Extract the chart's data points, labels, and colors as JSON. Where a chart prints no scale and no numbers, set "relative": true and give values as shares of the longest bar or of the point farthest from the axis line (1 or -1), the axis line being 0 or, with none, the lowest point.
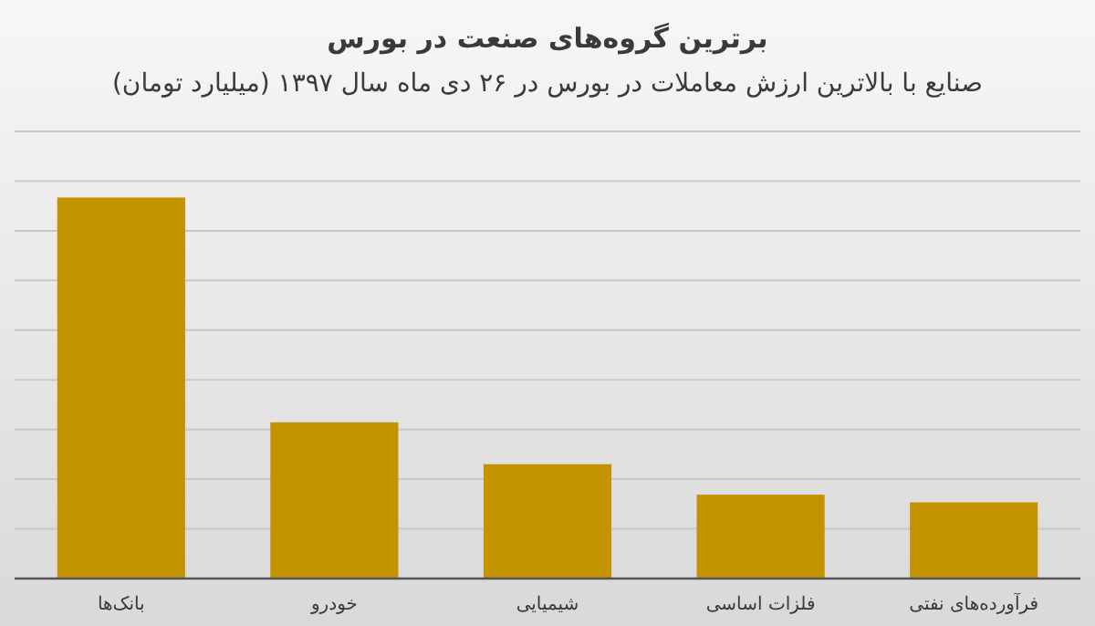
{
  "chart_data": {
    "type": "bar",
    "title": "برترین گروه‌های صنعت در بورس",
    "subtitle": "صنایع با بالاترین ارزش معاملات در بورس در ۲۶ دی ماه سال ۱۳۹۷ (میلیارد تومان)",
    "categories": [
      "بانک‌ها",
      "خودرو",
      "شیمیایی",
      "فلزات اساسی",
      "فرآورده‌های نفتی"
    ],
    "values": [
      1,
      0.41,
      0.3,
      0.22,
      0.2
    ],
    "color": "#c49300",
    "relative": true,
    "grid": true
  }
}
